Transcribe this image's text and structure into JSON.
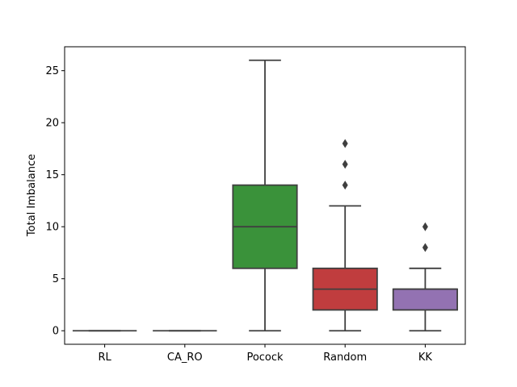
{
  "chart_data": {
    "type": "box",
    "title": "",
    "xlabel": "",
    "ylabel": "Total Imbalance",
    "ylim": [
      -1.3,
      27.3
    ],
    "yticks": [
      0,
      5,
      10,
      15,
      20,
      25
    ],
    "grid": false,
    "categories": [
      "RL",
      "CA_RO",
      "Pocock",
      "Random",
      "KK"
    ],
    "boxes": [
      {
        "category": "RL",
        "color": "#3274a1",
        "whisker_low": 0,
        "q1": 0,
        "median": 0,
        "q3": 0,
        "whisker_high": 0,
        "outliers": []
      },
      {
        "category": "CA_RO",
        "color": "#e1812c",
        "whisker_low": 0,
        "q1": 0,
        "median": 0,
        "q3": 0,
        "whisker_high": 0,
        "outliers": []
      },
      {
        "category": "Pocock",
        "color": "#3a923a",
        "whisker_low": 0,
        "q1": 6,
        "median": 10,
        "q3": 14,
        "whisker_high": 26,
        "outliers": []
      },
      {
        "category": "Random",
        "color": "#c03d3e",
        "whisker_low": 0,
        "q1": 2,
        "median": 4,
        "q3": 6,
        "whisker_high": 12,
        "outliers": [
          14,
          16,
          18
        ]
      },
      {
        "category": "KK",
        "color": "#9372b2",
        "whisker_low": 0,
        "q1": 2,
        "median": 4,
        "q3": 4,
        "whisker_high": 6,
        "outliers": [
          8,
          10
        ]
      }
    ],
    "line_color": "#3f3f3f"
  }
}
